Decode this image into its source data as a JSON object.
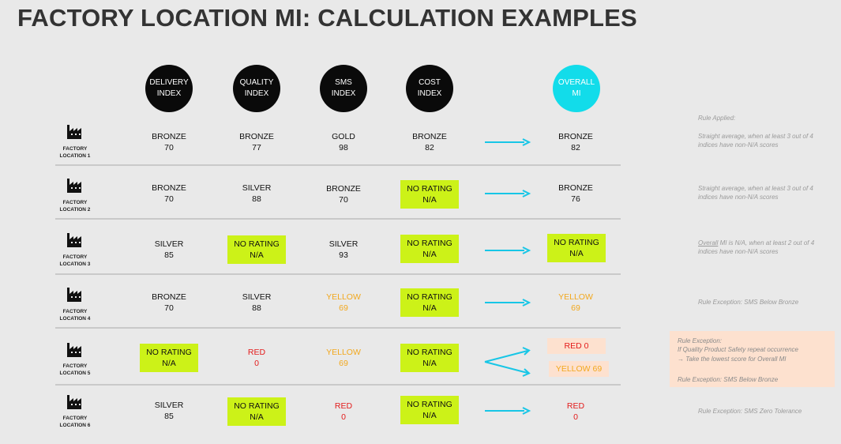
{
  "title": "FACTORY LOCATION MI: CALCULATION EXAMPLES",
  "headers": {
    "delivery": "DELIVERY\nINDEX",
    "quality": "QUALITY\nINDEX",
    "sms": "SMS\nINDEX",
    "cost": "COST\nINDEX",
    "overall": "OVERALL\nMI"
  },
  "rows": [
    {
      "label": "FACTORY\nLOCATION 1",
      "delivery": "BRONZE\n70",
      "quality": "BRONZE\n77",
      "sms": "GOLD\n98",
      "cost": "BRONZE\n82",
      "overall": "BRONZE\n82"
    },
    {
      "label": "FACTORY\nLOCATION 2",
      "delivery": "BRONZE\n70",
      "quality": "SILVER\n88",
      "sms": "BRONZE\n70",
      "cost": "NO RATING\nN/A",
      "overall": "BRONZE\n76"
    },
    {
      "label": "FACTORY\nLOCATION 3",
      "delivery": "SILVER\n85",
      "quality": "NO RATING\nN/A",
      "sms": "SILVER\n93",
      "cost": "NO RATING\nN/A",
      "overall": "NO RATING\nN/A"
    },
    {
      "label": "FACTORY\nLOCATION 4",
      "delivery": "BRONZE\n70",
      "quality": "SILVER\n88",
      "sms": "YELLOW\n69",
      "cost": "NO RATING\nN/A",
      "overall": "YELLOW\n69"
    },
    {
      "label": "FACTORY\nLOCATION 5",
      "delivery": "NO RATING\nN/A",
      "quality": "RED\n0",
      "sms": "YELLOW\n69",
      "cost": "NO RATING\nN/A",
      "overall_a": "RED  0",
      "overall_b": "YELLOW  69"
    },
    {
      "label": "FACTORY\nLOCATION 6",
      "delivery": "SILVER\n85",
      "quality": "NO RATING\nN/A",
      "sms": "RED\n0",
      "cost": "NO RATING\nN/A",
      "overall": "RED\n0"
    }
  ],
  "notes": {
    "rule_applied": "Rule Applied:",
    "row1": "Straight average, when at least 3 out of 4 indices have non-N/A scores",
    "row2": "Straight average, when at least 3 out of 4 indices have non-N/A scores",
    "row3_word": "Overall",
    "row3_rest": " MI is N/A, when at least 2 out of 4 indices have non-N/A scores",
    "row4": "Rule Exception: SMS Below Bronze",
    "row5_l1": "Rule Exception:",
    "row5_l2": "If Quality Product Safety repeat occurrence",
    "row5_l3": "→ Take the lowest score for Overall MI",
    "row5_l4": "Rule Exception: SMS Below Bronze",
    "row6": "Rule Exception: SMS Zero Tolerance"
  },
  "colors": {
    "accent": "#12dcea",
    "no_rating": "#ccf218",
    "yellow": "#f2a81e",
    "red": "#e31b1b",
    "peach": "#fde1cf",
    "arrow": "#17c6e6"
  }
}
